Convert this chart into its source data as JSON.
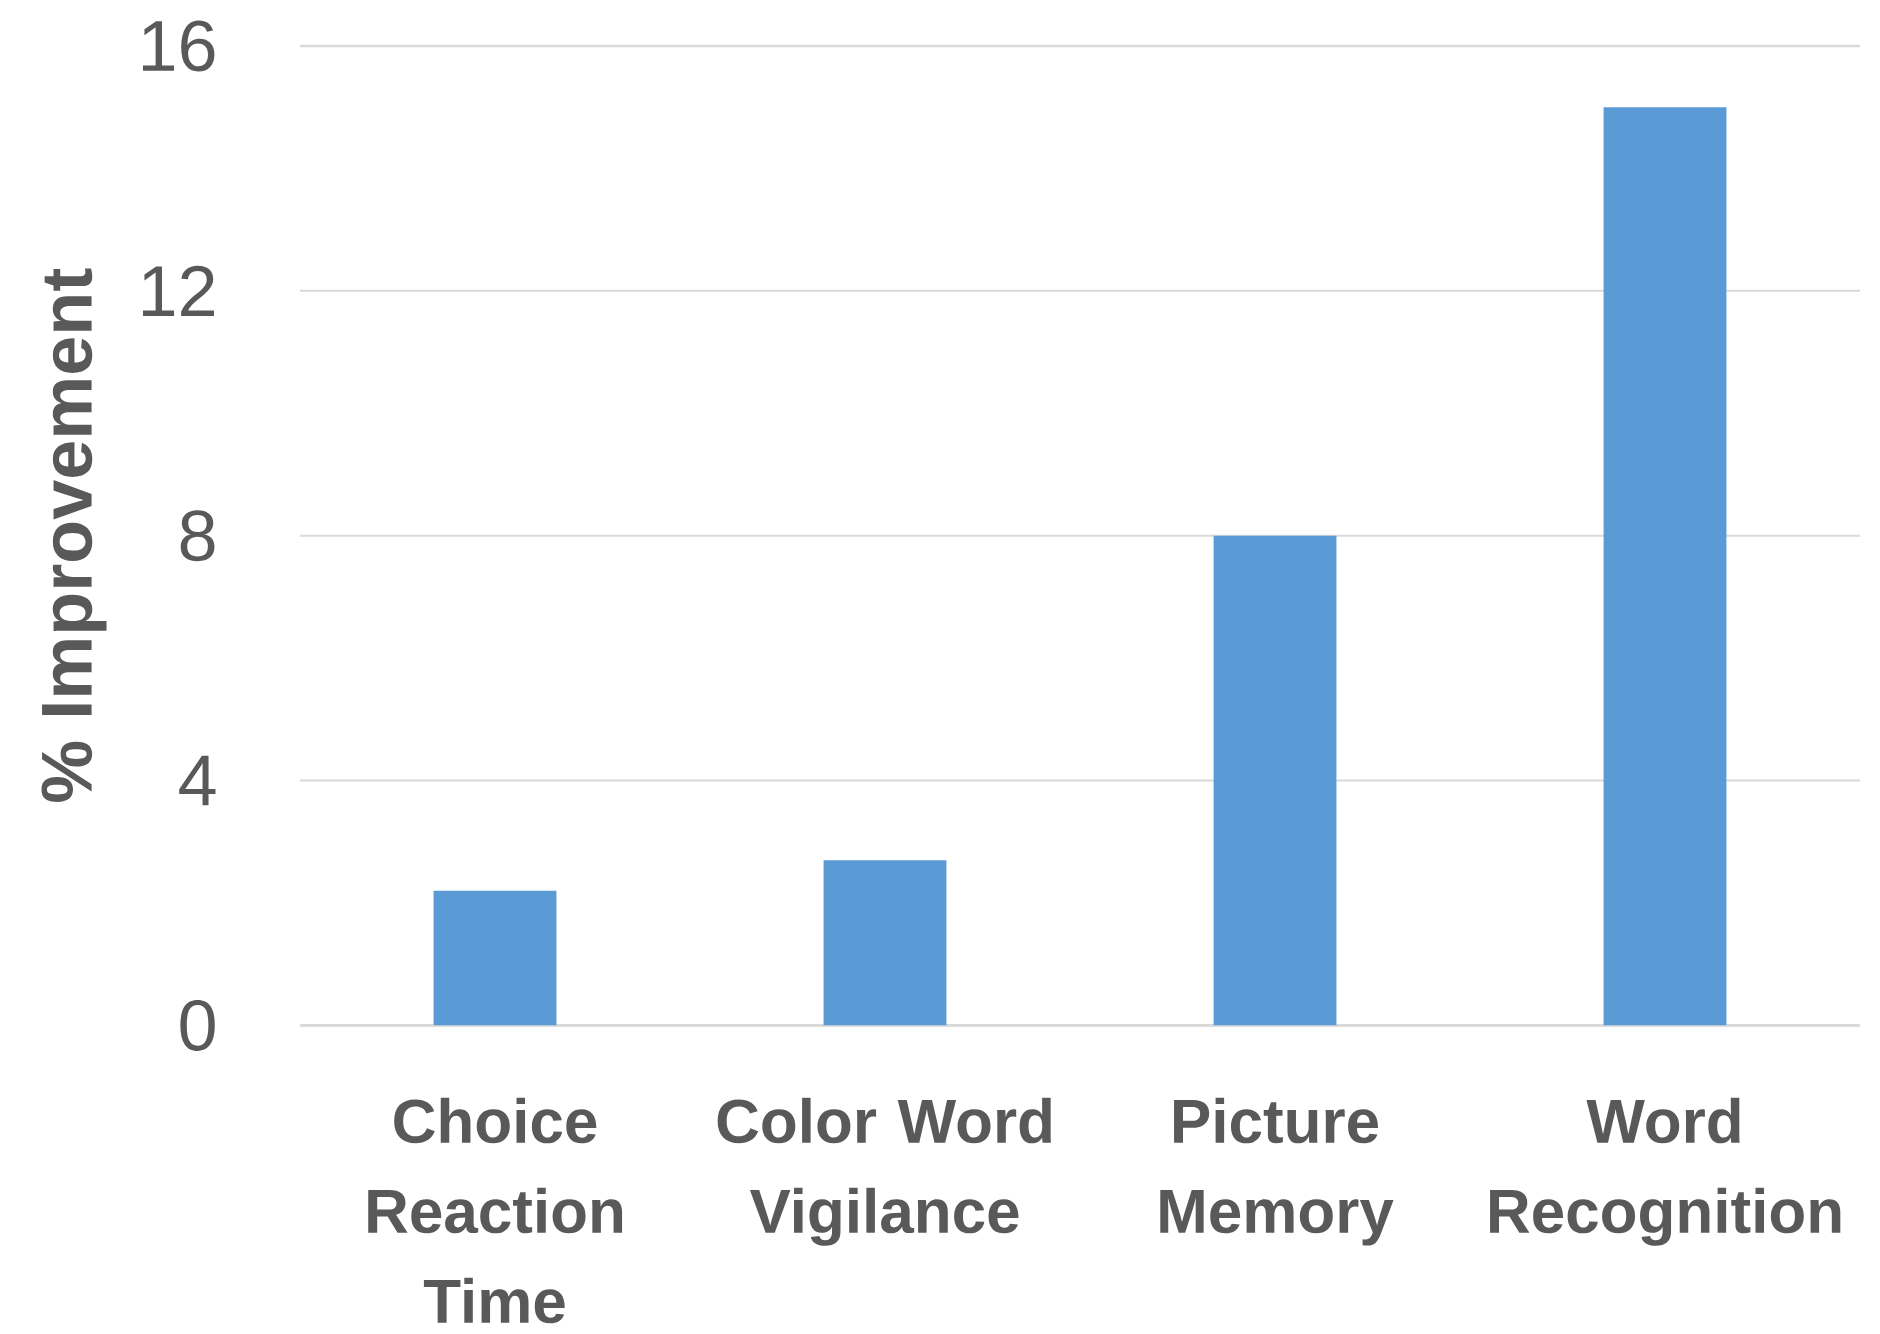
{
  "chart_data": {
    "type": "bar",
    "ylabel": "% Improvement",
    "categories": [
      "Choice Reaction Time",
      "Color Word Vigilance",
      "Picture Memory",
      "Word Recognition"
    ],
    "values": [
      2.2,
      2.7,
      8,
      15
    ],
    "color": "#5b9bd5",
    "ylim": [
      0,
      16
    ],
    "yticks": [
      0,
      4,
      8,
      12,
      16
    ],
    "grid": "y"
  }
}
